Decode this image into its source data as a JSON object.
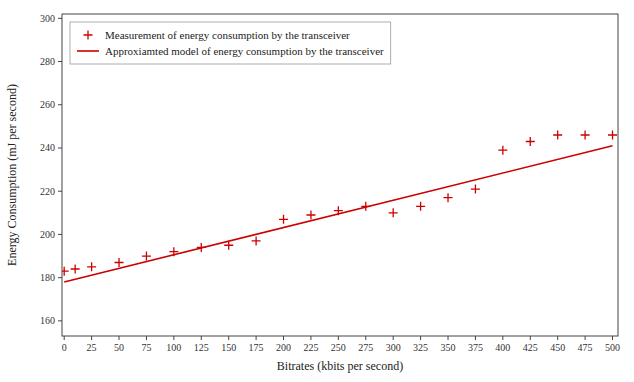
{
  "chart_data": {
    "type": "scatter",
    "xlabel": "Bitrates (kbits per second)",
    "ylabel": "Energy Consumption (mJ per second)",
    "series": [
      {
        "name": "Measurement of energy consumption by the transceiver",
        "type": "scatter",
        "color": "#cc0000",
        "marker": "plus",
        "x": [
          0,
          10,
          25,
          50,
          75,
          100,
          125,
          150,
          175,
          200,
          225,
          250,
          275,
          300,
          325,
          350,
          375,
          400,
          425,
          450,
          475,
          500
        ],
        "values": [
          183,
          184,
          185,
          187,
          190,
          192,
          194,
          195,
          197,
          207,
          209,
          211,
          213,
          210,
          213,
          217,
          221,
          239,
          243,
          246,
          246,
          246
        ]
      },
      {
        "name": "Approxiamted model of energy consumption by the transceiver",
        "type": "line",
        "color": "#cc0000",
        "line_style": "solid",
        "x": [
          0,
          500
        ],
        "values": [
          178,
          241
        ]
      }
    ],
    "xlim": [
      -2,
      505
    ],
    "ylim": [
      153,
      302
    ],
    "xticks": [
      0,
      25,
      50,
      75,
      100,
      125,
      150,
      175,
      200,
      225,
      250,
      275,
      300,
      325,
      350,
      375,
      400,
      425,
      450,
      475,
      500
    ],
    "yticks": [
      160,
      180,
      200,
      220,
      240,
      260,
      280,
      300
    ],
    "grid": false,
    "legend": "upper-left"
  }
}
